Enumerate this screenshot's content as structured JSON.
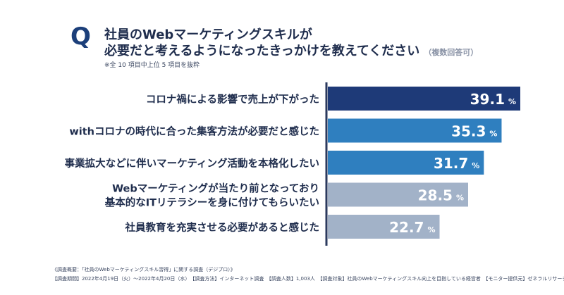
{
  "header": {
    "q_mark": "Q",
    "title_line1": "社員のWebマーケティングスキルが",
    "title_line2": "必要だと考えるようになったきっかけを教えてください",
    "title_note": "（複数回答可）",
    "subnote": "※全 10 項目中上位 5 項目を抜粋"
  },
  "footer": {
    "line1": "《調査概要：「社員のWebマーケティングスキル習得」に関する調査（デジプロ）》",
    "line2": "【調査期間】2022年4月19日（火）〜2022年4月20日（水）　【調査方法】インターネット調査　【調査人数】1,003人　【調査対象】社員のWebマーケティングスキル向上を目指している経営者　【モニター提供元】ゼネラルリサーチ"
  },
  "chart_data": {
    "type": "bar",
    "orientation": "horizontal",
    "categories": [
      [
        "コロナ禍による影響で売上が下がった"
      ],
      [
        "withコロナの時代に合った集客方法が必要だと感じた"
      ],
      [
        "事業拡大などに伴いマーケティング活動を本格化したい"
      ],
      [
        "Webマーケティングが当たり前となっており",
        "基本的なITリテラシーを身に付けてもらいたい"
      ],
      [
        "社員教育を充実させる必要があると感じた"
      ]
    ],
    "values": [
      39.1,
      35.3,
      31.7,
      28.5,
      22.7
    ],
    "value_labels": [
      "39.1",
      "35.3",
      "31.7",
      "28.5",
      "22.7"
    ],
    "unit": "%",
    "colors": [
      "#1e3a78",
      "#2f7fbf",
      "#2f7fbf",
      "#a2b2c8",
      "#a2b2c8"
    ],
    "axis_color": "#2b3a5e",
    "grid": false,
    "legend": "none"
  }
}
